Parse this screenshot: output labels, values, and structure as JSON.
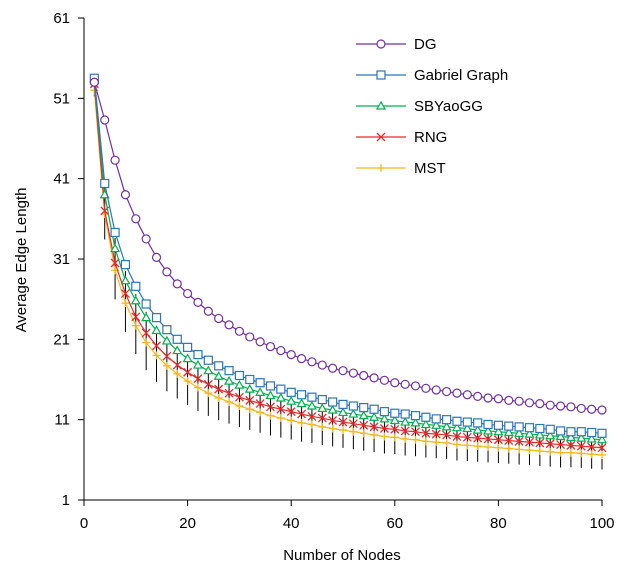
{
  "chart_data": {
    "type": "line",
    "title": "",
    "xlabel": "Number of Nodes",
    "ylabel": "Average Edge Length",
    "xlim": [
      0,
      100
    ],
    "ylim": [
      1,
      61
    ],
    "xticks": [
      "0",
      "20",
      "40",
      "60",
      "80",
      "100"
    ],
    "yticks": [
      "1",
      "11",
      "21",
      "31",
      "41",
      "51",
      "61"
    ],
    "grid": false,
    "legend_position": "top-right",
    "error_bars": true,
    "x": [
      2,
      4,
      6,
      8,
      10,
      12,
      14,
      16,
      18,
      20,
      22,
      24,
      26,
      28,
      30,
      32,
      34,
      36,
      38,
      40,
      42,
      44,
      46,
      48,
      50,
      52,
      54,
      56,
      58,
      60,
      62,
      64,
      66,
      68,
      70,
      72,
      74,
      76,
      78,
      80,
      82,
      84,
      86,
      88,
      90,
      92,
      94,
      96,
      98,
      100
    ],
    "series": [
      {
        "name": "DG",
        "marker": "circle",
        "color": "#7030A0",
        "values": [
          53.0,
          48.3,
          43.3,
          39.0,
          36.0,
          33.5,
          31.2,
          29.4,
          27.9,
          26.7,
          25.6,
          24.5,
          23.6,
          22.8,
          22.0,
          21.3,
          20.7,
          20.1,
          19.6,
          19.1,
          18.6,
          18.2,
          17.8,
          17.4,
          17.1,
          16.8,
          16.5,
          16.2,
          15.9,
          15.6,
          15.4,
          15.2,
          14.9,
          14.7,
          14.5,
          14.3,
          14.1,
          13.9,
          13.7,
          13.6,
          13.4,
          13.3,
          13.1,
          13.0,
          12.8,
          12.7,
          12.6,
          12.4,
          12.3,
          12.2
        ]
      },
      {
        "name": "Gabriel Graph",
        "marker": "square",
        "color": "#2E75B6",
        "values": [
          53.5,
          40.4,
          34.3,
          30.3,
          27.6,
          25.4,
          23.7,
          22.2,
          21.0,
          20.0,
          19.1,
          18.4,
          17.7,
          17.1,
          16.5,
          16.0,
          15.6,
          15.2,
          14.8,
          14.4,
          14.1,
          13.8,
          13.5,
          13.2,
          12.9,
          12.7,
          12.5,
          12.3,
          12.0,
          11.8,
          11.7,
          11.5,
          11.3,
          11.1,
          11.0,
          10.8,
          10.7,
          10.6,
          10.4,
          10.3,
          10.2,
          10.1,
          10.0,
          9.9,
          9.8,
          9.6,
          9.5,
          9.5,
          9.4,
          9.3
        ]
      },
      {
        "name": "SBYaoGG",
        "marker": "triangle",
        "color": "#00B050",
        "values": [
          53.2,
          39.0,
          32.3,
          28.3,
          25.8,
          23.7,
          22.1,
          20.8,
          19.6,
          18.6,
          17.8,
          17.1,
          16.4,
          15.8,
          15.3,
          14.8,
          14.4,
          14.0,
          13.7,
          13.3,
          13.0,
          12.7,
          12.4,
          12.2,
          11.9,
          11.7,
          11.5,
          11.3,
          11.1,
          10.9,
          10.7,
          10.6,
          10.4,
          10.3,
          10.1,
          10.0,
          9.9,
          9.7,
          9.6,
          9.5,
          9.4,
          9.3,
          9.2,
          9.1,
          9.0,
          8.9,
          8.8,
          8.7,
          8.6,
          8.5
        ]
      },
      {
        "name": "RNG",
        "marker": "x",
        "color": "#E8292B",
        "values": [
          52.8,
          37.0,
          30.5,
          26.7,
          23.8,
          21.8,
          20.2,
          18.9,
          17.8,
          16.9,
          16.1,
          15.4,
          14.8,
          14.3,
          13.8,
          13.4,
          13.0,
          12.6,
          12.3,
          12.0,
          11.7,
          11.4,
          11.2,
          10.9,
          10.7,
          10.5,
          10.3,
          10.1,
          9.9,
          9.8,
          9.6,
          9.5,
          9.3,
          9.2,
          9.1,
          8.9,
          8.8,
          8.7,
          8.6,
          8.5,
          8.4,
          8.3,
          8.2,
          8.1,
          8.0,
          7.9,
          7.8,
          7.7,
          7.6,
          7.5
        ]
      },
      {
        "name": "MST",
        "marker": "plus",
        "color": "#F6B820",
        "values": [
          52.0,
          36.6,
          29.6,
          25.5,
          22.7,
          20.6,
          19.0,
          17.7,
          16.7,
          15.8,
          15.0,
          14.3,
          13.7,
          13.2,
          12.7,
          12.3,
          11.9,
          11.5,
          11.2,
          10.9,
          10.6,
          10.4,
          10.1,
          9.9,
          9.7,
          9.5,
          9.3,
          9.1,
          8.9,
          8.8,
          8.6,
          8.5,
          8.3,
          8.2,
          8.1,
          7.9,
          7.8,
          7.7,
          7.6,
          7.5,
          7.4,
          7.3,
          7.2,
          7.1,
          7.0,
          6.9,
          6.9,
          6.8,
          6.7,
          6.6
        ]
      }
    ]
  }
}
